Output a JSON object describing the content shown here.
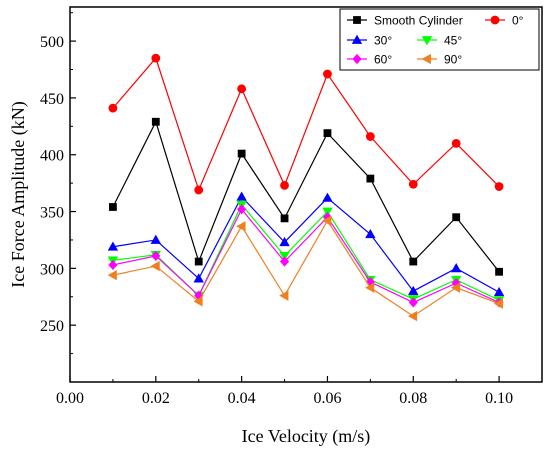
{
  "chart_data": {
    "type": "line",
    "xlabel": "Ice Velocity (m/s)",
    "ylabel": "Ice Force Amplitude (kN)",
    "xlim": [
      0.0,
      0.11
    ],
    "ylim": [
      200,
      530
    ],
    "xticks": [
      0.0,
      0.02,
      0.04,
      0.06,
      0.08,
      0.1
    ],
    "xtick_labels": [
      "0.00",
      "0.02",
      "0.04",
      "0.06",
      "0.08",
      "0.10"
    ],
    "yticks": [
      250,
      300,
      350,
      400,
      450,
      500
    ],
    "ytick_labels": [
      "250",
      "300",
      "350",
      "400",
      "450",
      "500"
    ],
    "grid": false,
    "legend_position": "top-right",
    "x": [
      0.01,
      0.02,
      0.03,
      0.04,
      0.05,
      0.06,
      0.07,
      0.08,
      0.09,
      0.1
    ],
    "series": [
      {
        "name": "Smooth Cylinder",
        "color": "#000000",
        "marker": "square",
        "values": [
          354,
          429,
          306,
          401,
          344,
          419,
          379,
          306,
          345,
          297
        ]
      },
      {
        "name": "0°",
        "color": "#ff0000",
        "marker": "circle",
        "values": [
          441,
          485,
          369,
          458,
          373,
          471,
          416,
          374,
          410,
          372
        ]
      },
      {
        "name": "30°",
        "color": "#0000ff",
        "marker": "triangle-up",
        "values": [
          319,
          325,
          291,
          363,
          323,
          362,
          330,
          280,
          300,
          279
        ]
      },
      {
        "name": "45°",
        "color": "#00ff00",
        "marker": "triangle-down",
        "values": [
          307,
          312,
          276,
          356,
          311,
          350,
          290,
          273,
          290,
          272
        ]
      },
      {
        "name": "60°",
        "color": "#ff00ff",
        "marker": "diamond",
        "values": [
          303,
          311,
          276,
          352,
          306,
          345,
          288,
          270,
          287,
          270
        ]
      },
      {
        "name": "90°",
        "color": "#f07f1f",
        "marker": "triangle-left",
        "values": [
          294,
          302,
          271,
          337,
          276,
          342,
          283,
          258,
          283,
          269
        ]
      }
    ]
  }
}
